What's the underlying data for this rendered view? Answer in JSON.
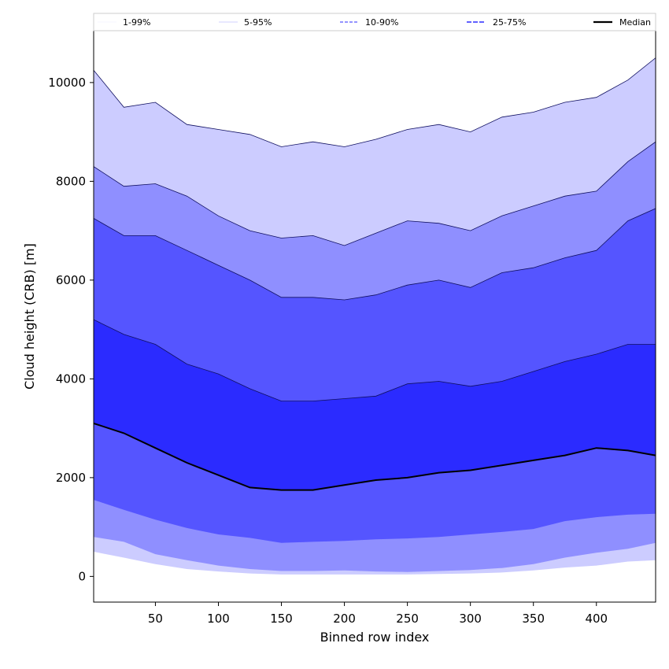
{
  "chart_data": {
    "type": "area",
    "title": "",
    "xlabel": "Binned row index",
    "ylabel": "Cloud height (CRB) [m]",
    "xlim": [
      1,
      447
    ],
    "ylim": [
      -520,
      11050
    ],
    "xticks": [
      50,
      100,
      150,
      200,
      250,
      300,
      350,
      400
    ],
    "yticks": [
      0,
      2000,
      4000,
      6000,
      8000,
      10000
    ],
    "grid": false,
    "legend_position": "top",
    "x": [
      1,
      25,
      50,
      75,
      100,
      125,
      150,
      175,
      200,
      225,
      250,
      275,
      300,
      325,
      350,
      375,
      400,
      425,
      447
    ],
    "bands": [
      {
        "name": "1-99%",
        "color": "#ccccff",
        "lower": [
          500,
          380,
          250,
          150,
          100,
          60,
          40,
          40,
          40,
          40,
          40,
          50,
          60,
          80,
          120,
          180,
          220,
          300,
          330
        ],
        "upper": [
          10250,
          9500,
          9600,
          9150,
          9050,
          8950,
          8700,
          8800,
          8700,
          8850,
          9050,
          9150,
          9000,
          9300,
          9400,
          9600,
          9700,
          10050,
          10500
        ]
      },
      {
        "name": "5-95%",
        "color": "#8f8fff",
        "lower": [
          800,
          700,
          450,
          330,
          220,
          150,
          110,
          110,
          120,
          100,
          90,
          110,
          130,
          170,
          250,
          380,
          480,
          560,
          680
        ],
        "upper": [
          8300,
          7900,
          7950,
          7700,
          7300,
          7000,
          6850,
          6900,
          6700,
          6950,
          7200,
          7150,
          7000,
          7300,
          7500,
          7700,
          7800,
          8400,
          8800
        ]
      },
      {
        "name": "10-90%",
        "color": "#5555ff",
        "lower": [
          1550,
          1350,
          1150,
          980,
          850,
          780,
          680,
          700,
          720,
          750,
          770,
          800,
          850,
          900,
          960,
          1120,
          1200,
          1250,
          1270
        ]
      },
      {
        "name": "25-75%",
        "color": "#2b2bff",
        "lower": [
          3100,
          2900,
          2600,
          2300,
          2050,
          1800,
          1750,
          1750,
          1850,
          1950,
          2000,
          2100,
          2150,
          2250,
          2350,
          2450,
          2600,
          2550,
          2450
        ],
        "upper": [
          5200,
          4900,
          4700,
          4300,
          4100,
          3800,
          3550,
          3550,
          3600,
          3650,
          3900,
          3950,
          3850,
          3950,
          4150,
          4350,
          4500,
          4700,
          4700
        ]
      }
    ],
    "band_upper_10_90": [
      7250,
      6900,
      6900,
      6600,
      6300,
      6000,
      5650,
      5650,
      5600,
      5700,
      5900,
      6000,
      5850,
      6150,
      6250,
      6450,
      6600,
      7200,
      7450
    ],
    "median": {
      "name": "Median",
      "color": "#000000",
      "values": [
        3100,
        2900,
        2600,
        2300,
        2050,
        1800,
        1750,
        1750,
        1850,
        1950,
        2000,
        2100,
        2150,
        2250,
        2350,
        2450,
        2600,
        2550,
        2450
      ]
    },
    "legend": [
      {
        "label": "1-99%",
        "color": "#ccccff"
      },
      {
        "label": "5-95%",
        "color": "#8f8fff"
      },
      {
        "label": "10-90%",
        "color": "#5555ff"
      },
      {
        "label": "25-75%",
        "color": "#2b2bff"
      },
      {
        "label": "Median",
        "color": "#000000"
      }
    ]
  }
}
